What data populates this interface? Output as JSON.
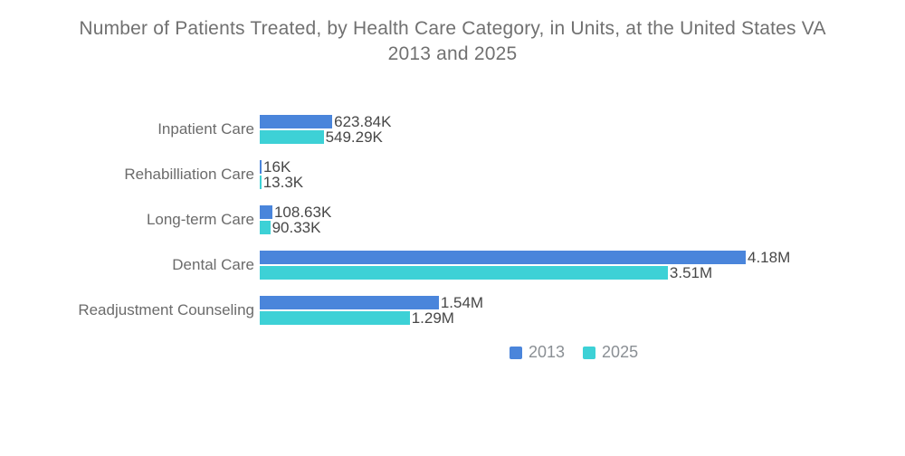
{
  "title": {
    "line1": "Number of Patients Treated, by Health Care Category, in Units, at the United States VA",
    "line2": "2013 and 2025"
  },
  "colors": {
    "series_2013": "#4a85db",
    "series_2025": "#3dd1d6"
  },
  "legend": [
    {
      "label": "2013",
      "color_key": "series_2013"
    },
    {
      "label": "2025",
      "color_key": "series_2025"
    }
  ],
  "chart_data": {
    "type": "bar",
    "orientation": "horizontal",
    "title": "Number of Patients Treated, by Health Care Category, in Units, at the United States VA 2013 and 2025",
    "categories": [
      "Inpatient Care",
      "Rehabilliation Care",
      "Long-term Care",
      "Dental Care",
      "Readjustment Counseling"
    ],
    "series": [
      {
        "name": "2013",
        "values": [
          623840,
          16000,
          108630,
          4180000,
          1540000
        ],
        "labels": [
          "623.84K",
          "16K",
          "108.63K",
          "4.18M",
          "1.54M"
        ]
      },
      {
        "name": "2025",
        "values": [
          549290,
          13300,
          90330,
          3510000,
          1290000
        ],
        "labels": [
          "549.29K",
          "13.3K",
          "90.33K",
          "3.51M",
          "1.29M"
        ]
      }
    ],
    "xlim": [
      0,
      4180000
    ],
    "grid": false,
    "legend_position": "bottom",
    "value_labels": "end-of-bar"
  }
}
